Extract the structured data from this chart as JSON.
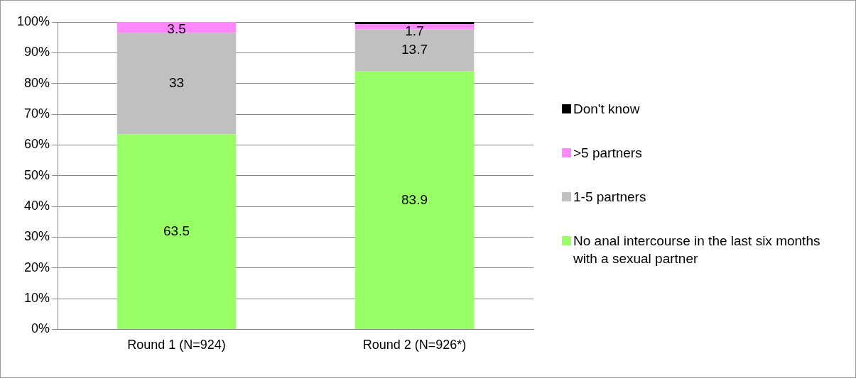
{
  "chart_data": {
    "type": "bar",
    "stacked": true,
    "categories": [
      "Round 1 (N=924)",
      "Round 2 (N=926*)"
    ],
    "series": [
      {
        "name": "No anal intercourse in the last six months with a sexual partner",
        "color": "#99ff66",
        "values": [
          63.5,
          83.9
        ],
        "value_labels": [
          "63.5",
          "83.9"
        ]
      },
      {
        "name": "1-5 partners",
        "color": "#c0c0c0",
        "values": [
          33,
          13.7
        ],
        "value_labels": [
          "33",
          "13.7"
        ]
      },
      {
        "name": ">5 partners",
        "color": "#ff88ff",
        "values": [
          3.5,
          1.7
        ],
        "value_labels": [
          "3.5",
          "1.7"
        ]
      },
      {
        "name": "Don't know",
        "color": "#000000",
        "values": [
          0,
          0.7
        ],
        "value_labels": [
          null,
          null
        ]
      }
    ],
    "ylim": [
      0,
      100
    ],
    "yticks": [
      {
        "value": 0,
        "label": "0%"
      },
      {
        "value": 10,
        "label": "10%"
      },
      {
        "value": 20,
        "label": "20%"
      },
      {
        "value": 30,
        "label": "30%"
      },
      {
        "value": 40,
        "label": "40%"
      },
      {
        "value": 50,
        "label": "50%"
      },
      {
        "value": 60,
        "label": "60%"
      },
      {
        "value": 70,
        "label": "70%"
      },
      {
        "value": 80,
        "label": "80%"
      },
      {
        "value": 90,
        "label": "90%"
      },
      {
        "value": 100,
        "label": "100%"
      }
    ],
    "grid": "y",
    "legend": "right"
  }
}
